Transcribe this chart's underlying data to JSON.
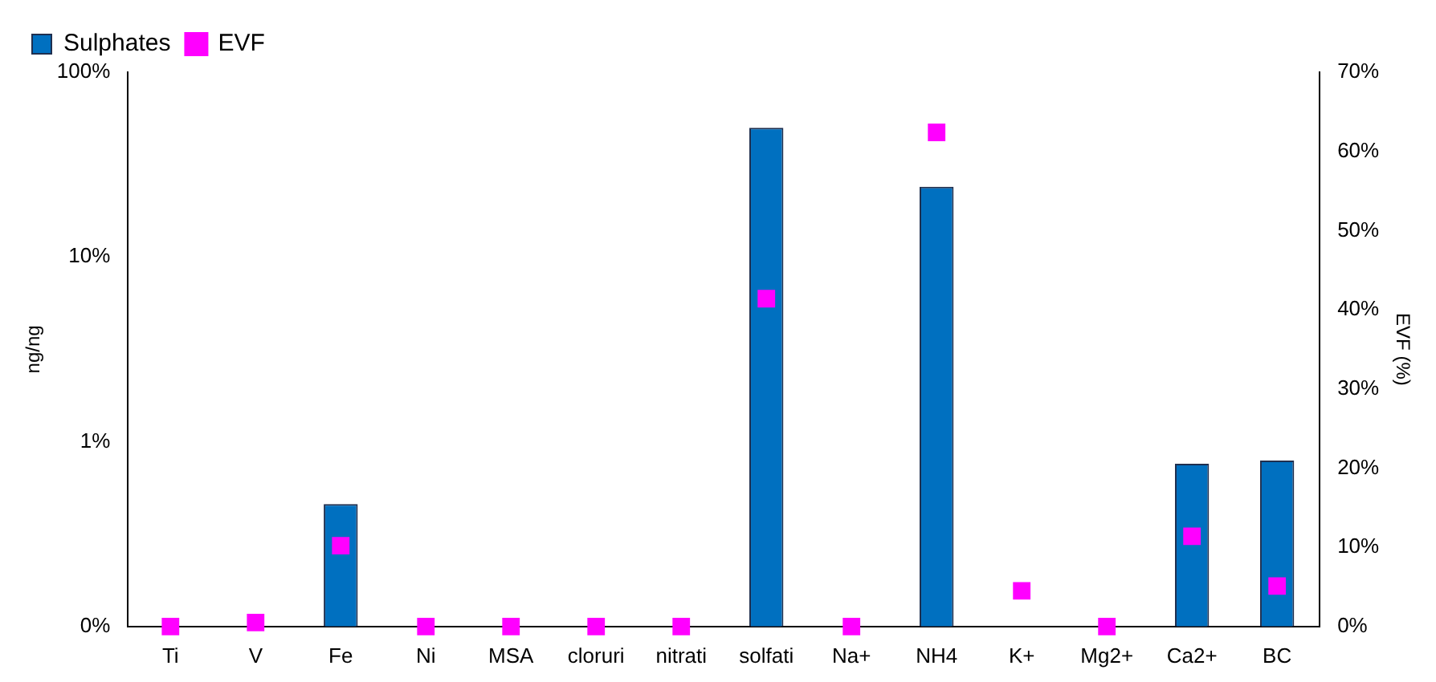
{
  "chart_data": {
    "type": "bar",
    "categories": [
      "Ti",
      "V",
      "Fe",
      "Ni",
      "MSA",
      "cloruri",
      "nitrati",
      "solfati",
      "Na+",
      "NH4",
      "K+",
      "Mg2+",
      "Ca2+",
      "BC"
    ],
    "series": [
      {
        "name": "Sulphates",
        "color": "#0070c0",
        "values": [
          0.1,
          0.1,
          0.46,
          0.1,
          0.1,
          0.1,
          0.1,
          50,
          0.1,
          24,
          0.1,
          0.1,
          0.76,
          0.79
        ]
      },
      {
        "name": "EVF",
        "type": "scatter",
        "axis": "y2",
        "color": "#ff00ff",
        "x": [
          "Ti",
          "V",
          "Fe",
          "Ni",
          "MSA",
          "cloruri",
          "nitrati",
          "solfati",
          "Na+",
          "NH4",
          "K+",
          "Mg2+",
          "Ca2+",
          "BC"
        ],
        "values": [
          0,
          0.5,
          10.2,
          0,
          0,
          0,
          0,
          41.4,
          0,
          62.4,
          4.5,
          0,
          11.4,
          5.1
        ]
      }
    ],
    "ylabel": "ng/ng",
    "y2label": "EVF (%)",
    "log": "y",
    "ylim": [
      0.1,
      100
    ],
    "yticks": [
      {
        "value": 0.1,
        "label": "0%"
      },
      {
        "value": 1,
        "label": "1%"
      },
      {
        "value": 10,
        "label": "10%"
      },
      {
        "value": 100,
        "label": "100%"
      }
    ],
    "y2lim": [
      0,
      70
    ],
    "y2ticks": [
      {
        "value": 0,
        "label": "0%"
      },
      {
        "value": 10,
        "label": "10%"
      },
      {
        "value": 20,
        "label": "20%"
      },
      {
        "value": 30,
        "label": "30%"
      },
      {
        "value": 40,
        "label": "40%"
      },
      {
        "value": 50,
        "label": "50%"
      },
      {
        "value": 60,
        "label": "60%"
      },
      {
        "value": 70,
        "label": "70%"
      }
    ],
    "marker": "square",
    "grid": false,
    "legend": "top left"
  }
}
